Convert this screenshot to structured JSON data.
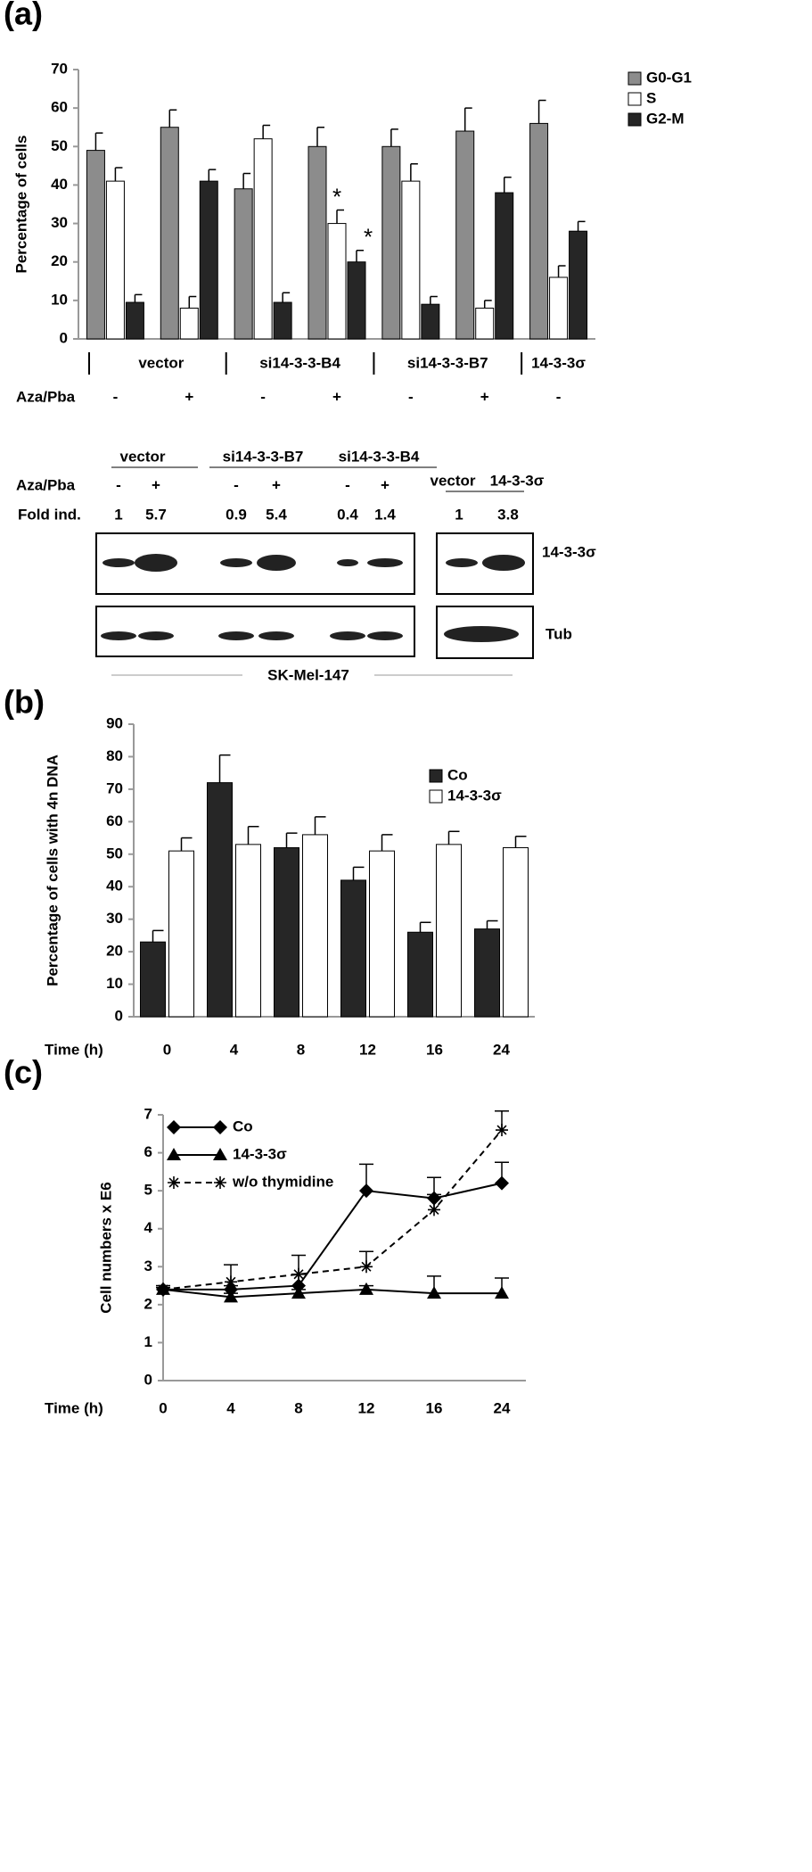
{
  "chart_data": [
    {
      "type": "bar",
      "label": "(a)",
      "ylabel": "Percentage of cells",
      "xlabel": "Aza/Pba",
      "categories": [
        "-",
        "+",
        "-",
        "+",
        "-",
        "+",
        "-"
      ],
      "group_labels": [
        "vector",
        "si14-3-3-B4",
        "si14-3-3-B7",
        "14-3-3σ"
      ],
      "series": [
        {
          "name": "G0-G1",
          "color": "#8c8c8c",
          "values": [
            49,
            55,
            39,
            50,
            50,
            54,
            56
          ],
          "errors": [
            4.5,
            4.5,
            4,
            5,
            4.5,
            6,
            6
          ]
        },
        {
          "name": "S",
          "color": "#ffffff",
          "values": [
            41,
            8,
            52,
            30,
            41,
            8,
            16
          ],
          "errors": [
            3.5,
            3,
            3.5,
            3.5,
            4.5,
            2,
            3
          ],
          "annotations": [
            null,
            null,
            null,
            "*",
            null,
            null,
            null
          ]
        },
        {
          "name": "G2-M",
          "color": "#262626",
          "values": [
            9.5,
            41,
            9.5,
            20,
            9,
            38,
            28
          ],
          "errors": [
            2,
            3,
            2.5,
            3,
            2,
            4,
            2.5
          ],
          "annotations": [
            null,
            null,
            null,
            "*",
            null,
            null,
            null
          ]
        }
      ],
      "ylim": [
        0,
        70
      ],
      "yticks": [
        0,
        10,
        20,
        30,
        40,
        50,
        60,
        70
      ],
      "grid": false,
      "legend": "top-right"
    },
    {
      "type": "bar",
      "label": "(b)",
      "ylabel": "Percentage of cells with 4n DNA",
      "xlabel": "Time (h)",
      "categories": [
        "0",
        "4",
        "8",
        "12",
        "16",
        "24"
      ],
      "series": [
        {
          "name": "Co",
          "color": "#262626",
          "values": [
            23,
            72,
            52,
            42,
            26,
            27
          ],
          "errors": [
            3.5,
            8.5,
            4.5,
            4,
            3,
            2.5
          ]
        },
        {
          "name": "14-3-3σ",
          "color": "#ffffff",
          "values": [
            51,
            53,
            56,
            51,
            53,
            52
          ],
          "errors": [
            4,
            5.5,
            5.5,
            5,
            4,
            3.5
          ]
        }
      ],
      "ylim": [
        0,
        90
      ],
      "yticks": [
        0,
        10,
        20,
        30,
        40,
        50,
        60,
        70,
        80,
        90
      ],
      "grid": false,
      "legend": "top-right"
    },
    {
      "type": "line",
      "label": "(c)",
      "ylabel": "Cell numbers x E6",
      "xlabel": "Time (h)",
      "categories": [
        "0",
        "4",
        "8",
        "12",
        "16",
        "24"
      ],
      "series": [
        {
          "name": "Co",
          "color": "#000000",
          "marker": "diamond",
          "linestyle": "solid",
          "values": [
            2.4,
            2.4,
            2.5,
            5.0,
            4.8,
            5.2
          ],
          "errors": [
            0.1,
            0.1,
            0.3,
            0.7,
            0.55,
            0.55
          ]
        },
        {
          "name": "14-3-3σ",
          "color": "#000000",
          "marker": "triangle",
          "linestyle": "solid",
          "values": [
            2.4,
            2.2,
            2.3,
            2.4,
            2.3,
            2.3
          ],
          "errors": [
            0.1,
            0.1,
            0.1,
            0.1,
            0.45,
            0.4
          ]
        },
        {
          "name": "w/o thymidine",
          "color": "#000000",
          "marker": "asterisk",
          "linestyle": "dashed",
          "values": [
            2.4,
            2.6,
            2.8,
            3.0,
            4.5,
            6.6
          ],
          "errors": [
            0.05,
            0.45,
            0.5,
            0.4,
            0.4,
            0.5
          ]
        }
      ],
      "ylim": [
        0,
        7
      ],
      "yticks": [
        0,
        1,
        2,
        3,
        4,
        5,
        6,
        7
      ],
      "grid": false,
      "legend": "top-left"
    }
  ],
  "blot": {
    "groups": [
      "vector",
      "si14-3-3-B7",
      "si14-3-3-B4"
    ],
    "treatment": "Aza/Pba",
    "signs": [
      "-",
      "+",
      "-",
      "+",
      "-",
      "+"
    ],
    "fold_label": "Fold ind.",
    "fold": [
      1,
      5.7,
      0.9,
      5.4,
      0.4,
      1.4
    ],
    "right_groups": [
      "vector",
      "14-3-3σ"
    ],
    "right_fold": [
      1,
      3.8
    ],
    "bands": [
      "14-3-3σ",
      "Tub"
    ],
    "cell_line": "SK-Mel-147"
  }
}
